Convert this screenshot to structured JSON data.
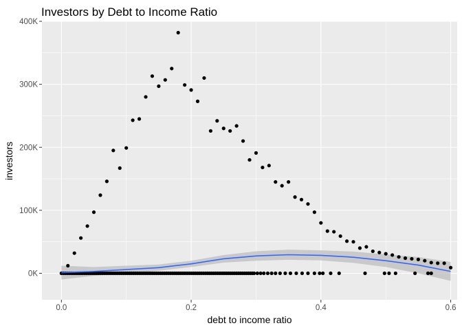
{
  "chart_data": {
    "type": "scatter",
    "title": "Investors by Debt to Income Ratio",
    "xlabel": "debt to income ratio",
    "ylabel": "investors",
    "xlim": [
      -0.03,
      0.61
    ],
    "ylim": [
      -42000,
      400000
    ],
    "x_ticks": [
      0.0,
      0.2,
      0.4,
      0.6
    ],
    "x_tick_labels": [
      "0.0",
      "0.2",
      "0.4",
      "0.6"
    ],
    "y_ticks": [
      0,
      100000,
      200000,
      300000,
      400000
    ],
    "y_tick_labels": [
      "0K",
      "100K",
      "200K",
      "300K",
      "400K"
    ],
    "grid": true,
    "colors": {
      "panel_background": "#ebebeb",
      "grid": "#ffffff",
      "points": "#000000",
      "smooth_line": "#3366ff",
      "confidence_band": "#bdbdbd"
    },
    "series": [
      {
        "kind": "points",
        "points": [
          [
            0.0,
            0
          ],
          [
            0.01,
            12000
          ],
          [
            0.02,
            32000
          ],
          [
            0.03,
            56000
          ],
          [
            0.04,
            75000
          ],
          [
            0.05,
            97000
          ],
          [
            0.06,
            124000
          ],
          [
            0.07,
            146000
          ],
          [
            0.08,
            195000
          ],
          [
            0.09,
            167000
          ],
          [
            0.1,
            199000
          ],
          [
            0.11,
            243000
          ],
          [
            0.12,
            245000
          ],
          [
            0.13,
            280000
          ],
          [
            0.14,
            313000
          ],
          [
            0.15,
            297000
          ],
          [
            0.16,
            307000
          ],
          [
            0.17,
            325000
          ],
          [
            0.18,
            382000
          ],
          [
            0.19,
            299000
          ],
          [
            0.2,
            291000
          ],
          [
            0.21,
            273000
          ],
          [
            0.22,
            310000
          ],
          [
            0.23,
            226000
          ],
          [
            0.24,
            242000
          ],
          [
            0.25,
            230000
          ],
          [
            0.26,
            226000
          ],
          [
            0.27,
            234000
          ],
          [
            0.28,
            210000
          ],
          [
            0.29,
            180000
          ],
          [
            0.3,
            191000
          ],
          [
            0.31,
            168000
          ],
          [
            0.32,
            171000
          ],
          [
            0.33,
            145000
          ],
          [
            0.34,
            139000
          ],
          [
            0.35,
            145000
          ],
          [
            0.36,
            121000
          ],
          [
            0.37,
            117000
          ],
          [
            0.38,
            110000
          ],
          [
            0.39,
            97000
          ],
          [
            0.4,
            80000
          ],
          [
            0.41,
            67000
          ],
          [
            0.42,
            66000
          ],
          [
            0.43,
            59000
          ],
          [
            0.44,
            51000
          ],
          [
            0.45,
            50000
          ],
          [
            0.46,
            40000
          ],
          [
            0.47,
            42000
          ],
          [
            0.48,
            35000
          ],
          [
            0.49,
            33000
          ],
          [
            0.5,
            31000
          ],
          [
            0.51,
            29000
          ],
          [
            0.52,
            26000
          ],
          [
            0.53,
            24000
          ],
          [
            0.54,
            23000
          ],
          [
            0.55,
            22000
          ],
          [
            0.56,
            20000
          ],
          [
            0.57,
            17000
          ],
          [
            0.58,
            16000
          ],
          [
            0.59,
            16000
          ],
          [
            0.6,
            9000
          ],
          [
            0.003,
            0
          ],
          [
            0.006,
            0
          ],
          [
            0.009,
            0
          ],
          [
            0.012,
            0
          ],
          [
            0.015,
            0
          ],
          [
            0.018,
            0
          ],
          [
            0.021,
            0
          ],
          [
            0.024,
            0
          ],
          [
            0.027,
            0
          ],
          [
            0.03,
            0
          ],
          [
            0.033,
            0
          ],
          [
            0.036,
            0
          ],
          [
            0.039,
            0
          ],
          [
            0.042,
            0
          ],
          [
            0.045,
            0
          ],
          [
            0.048,
            0
          ],
          [
            0.051,
            0
          ],
          [
            0.054,
            0
          ],
          [
            0.057,
            0
          ],
          [
            0.06,
            0
          ],
          [
            0.063,
            0
          ],
          [
            0.066,
            0
          ],
          [
            0.069,
            0
          ],
          [
            0.072,
            0
          ],
          [
            0.075,
            0
          ],
          [
            0.078,
            0
          ],
          [
            0.081,
            0
          ],
          [
            0.084,
            0
          ],
          [
            0.087,
            0
          ],
          [
            0.09,
            0
          ],
          [
            0.093,
            0
          ],
          [
            0.096,
            0
          ],
          [
            0.099,
            0
          ],
          [
            0.102,
            0
          ],
          [
            0.105,
            0
          ],
          [
            0.108,
            0
          ],
          [
            0.111,
            0
          ],
          [
            0.114,
            0
          ],
          [
            0.117,
            0
          ],
          [
            0.12,
            0
          ],
          [
            0.123,
            0
          ],
          [
            0.126,
            0
          ],
          [
            0.129,
            0
          ],
          [
            0.132,
            0
          ],
          [
            0.135,
            0
          ],
          [
            0.138,
            0
          ],
          [
            0.141,
            0
          ],
          [
            0.144,
            0
          ],
          [
            0.147,
            0
          ],
          [
            0.15,
            0
          ],
          [
            0.153,
            0
          ],
          [
            0.156,
            0
          ],
          [
            0.159,
            0
          ],
          [
            0.162,
            0
          ],
          [
            0.165,
            0
          ],
          [
            0.168,
            0
          ],
          [
            0.171,
            0
          ],
          [
            0.174,
            0
          ],
          [
            0.177,
            0
          ],
          [
            0.18,
            0
          ],
          [
            0.183,
            0
          ],
          [
            0.186,
            0
          ],
          [
            0.189,
            0
          ],
          [
            0.192,
            0
          ],
          [
            0.195,
            0
          ],
          [
            0.198,
            0
          ],
          [
            0.201,
            0
          ],
          [
            0.204,
            0
          ],
          [
            0.207,
            0
          ],
          [
            0.21,
            0
          ],
          [
            0.213,
            0
          ],
          [
            0.216,
            0
          ],
          [
            0.219,
            0
          ],
          [
            0.222,
            0
          ],
          [
            0.225,
            0
          ],
          [
            0.228,
            0
          ],
          [
            0.231,
            0
          ],
          [
            0.234,
            0
          ],
          [
            0.237,
            0
          ],
          [
            0.24,
            0
          ],
          [
            0.243,
            0
          ],
          [
            0.246,
            0
          ],
          [
            0.249,
            0
          ],
          [
            0.252,
            0
          ],
          [
            0.255,
            0
          ],
          [
            0.258,
            0
          ],
          [
            0.261,
            0
          ],
          [
            0.264,
            0
          ],
          [
            0.267,
            0
          ],
          [
            0.27,
            0
          ],
          [
            0.273,
            0
          ],
          [
            0.276,
            0
          ],
          [
            0.279,
            0
          ],
          [
            0.282,
            0
          ],
          [
            0.285,
            0
          ],
          [
            0.288,
            0
          ],
          [
            0.291,
            0
          ],
          [
            0.294,
            0
          ],
          [
            0.297,
            0
          ],
          [
            0.302,
            0
          ],
          [
            0.307,
            0
          ],
          [
            0.312,
            0
          ],
          [
            0.318,
            0
          ],
          [
            0.324,
            0
          ],
          [
            0.33,
            0
          ],
          [
            0.337,
            0
          ],
          [
            0.345,
            0
          ],
          [
            0.353,
            0
          ],
          [
            0.362,
            0
          ],
          [
            0.371,
            0
          ],
          [
            0.38,
            0
          ],
          [
            0.39,
            0
          ],
          [
            0.398,
            0
          ],
          [
            0.403,
            0
          ],
          [
            0.415,
            0
          ],
          [
            0.428,
            0
          ],
          [
            0.468,
            0
          ],
          [
            0.498,
            0
          ],
          [
            0.505,
            0
          ],
          [
            0.515,
            0
          ],
          [
            0.545,
            0
          ],
          [
            0.565,
            0
          ],
          [
            0.57,
            0
          ]
        ]
      },
      {
        "kind": "smooth",
        "x": [
          0.0,
          0.05,
          0.1,
          0.15,
          0.2,
          0.25,
          0.3,
          0.35,
          0.4,
          0.45,
          0.5,
          0.55,
          0.6
        ],
        "fit": [
          1000,
          3000,
          6000,
          9000,
          15000,
          23000,
          27500,
          29500,
          28500,
          25500,
          20000,
          13000,
          3000
        ],
        "lower": [
          -10000,
          -4000,
          0,
          4000,
          10000,
          17000,
          20000,
          21500,
          20500,
          16500,
          10000,
          0,
          -12000
        ],
        "upper": [
          12000,
          10000,
          12000,
          14000,
          20000,
          29000,
          35000,
          37500,
          36500,
          34500,
          30000,
          26000,
          18000
        ]
      }
    ]
  }
}
